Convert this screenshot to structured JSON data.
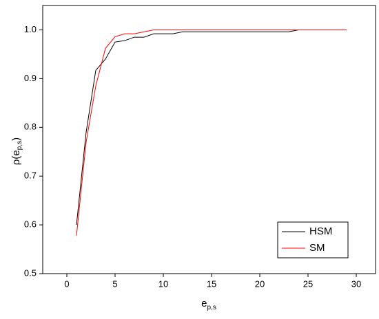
{
  "chart_data": {
    "type": "line",
    "xlabel": {
      "base": "e",
      "sub": "p,s"
    },
    "ylabel": {
      "base": "ρ(e",
      "sub": "p,s",
      "close": ")"
    },
    "x": [
      1,
      2,
      3,
      4,
      5,
      6,
      7,
      8,
      9,
      10,
      11,
      12,
      13,
      14,
      15,
      16,
      17,
      18,
      19,
      20,
      21,
      22,
      23,
      24,
      25,
      26,
      27,
      28,
      29
    ],
    "series": [
      {
        "name": "HSM",
        "color": "#000000",
        "values": [
          0.6,
          0.79,
          0.917,
          0.94,
          0.975,
          0.978,
          0.985,
          0.985,
          0.992,
          0.992,
          0.992,
          0.996,
          0.996,
          0.996,
          0.996,
          0.996,
          0.996,
          0.996,
          0.996,
          0.996,
          0.996,
          0.996,
          0.996,
          1.0,
          1.0,
          1.0,
          1.0,
          1.0,
          1.0
        ]
      },
      {
        "name": "SM",
        "color": "#ff0000",
        "values": [
          0.578,
          0.77,
          0.885,
          0.962,
          0.986,
          0.992,
          0.992,
          0.996,
          1.0,
          1.0,
          1.0,
          1.0,
          1.0,
          1.0,
          1.0,
          1.0,
          1.0,
          1.0,
          1.0,
          1.0,
          1.0,
          1.0,
          1.0,
          1.0,
          1.0,
          1.0,
          1.0,
          1.0,
          1.0
        ]
      }
    ],
    "xlim": [
      -2.5,
      32
    ],
    "xticks": [
      0,
      5,
      10,
      15,
      20,
      25,
      30
    ],
    "ylim": [
      0.5,
      1.05
    ],
    "yticks": [
      0.5,
      0.6,
      0.7,
      0.8,
      0.9,
      {
        "value": 1.0,
        "label": "1.0"
      }
    ],
    "legend": "lower right",
    "grid": false
  }
}
